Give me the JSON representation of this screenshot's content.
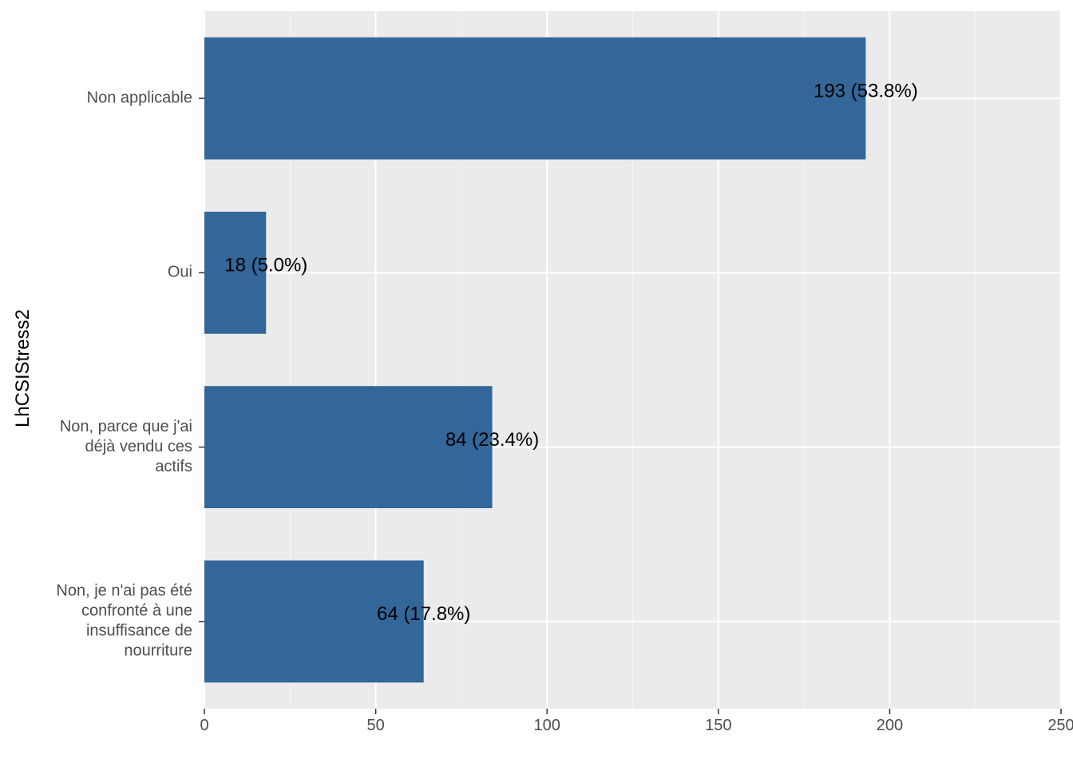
{
  "chart_data": {
    "type": "bar",
    "orientation": "horizontal",
    "title": "",
    "xlabel": "",
    "ylabel": "LhCSIStress2",
    "xlim": [
      0,
      250
    ],
    "x_ticks": [
      0,
      50,
      100,
      150,
      200,
      250
    ],
    "grid": true,
    "categories": [
      [
        "Non applicable"
      ],
      [
        "Oui"
      ],
      [
        "Non, parce que j'ai",
        "déjà vendu ces",
        "actifs"
      ],
      [
        "Non, je n'ai pas été",
        "confronté à une",
        "insuffisance de",
        "nourriture"
      ]
    ],
    "values": [
      193,
      18,
      84,
      64
    ],
    "labels": [
      "193 (53.8%)",
      "18 (5.0%)",
      "84 (23.4%)",
      "64 (17.8%)"
    ]
  },
  "colors": {
    "bar": "#336699",
    "panel": "#ebebeb",
    "grid_major": "#ffffff",
    "grid_minor": "#f5f5f5"
  }
}
